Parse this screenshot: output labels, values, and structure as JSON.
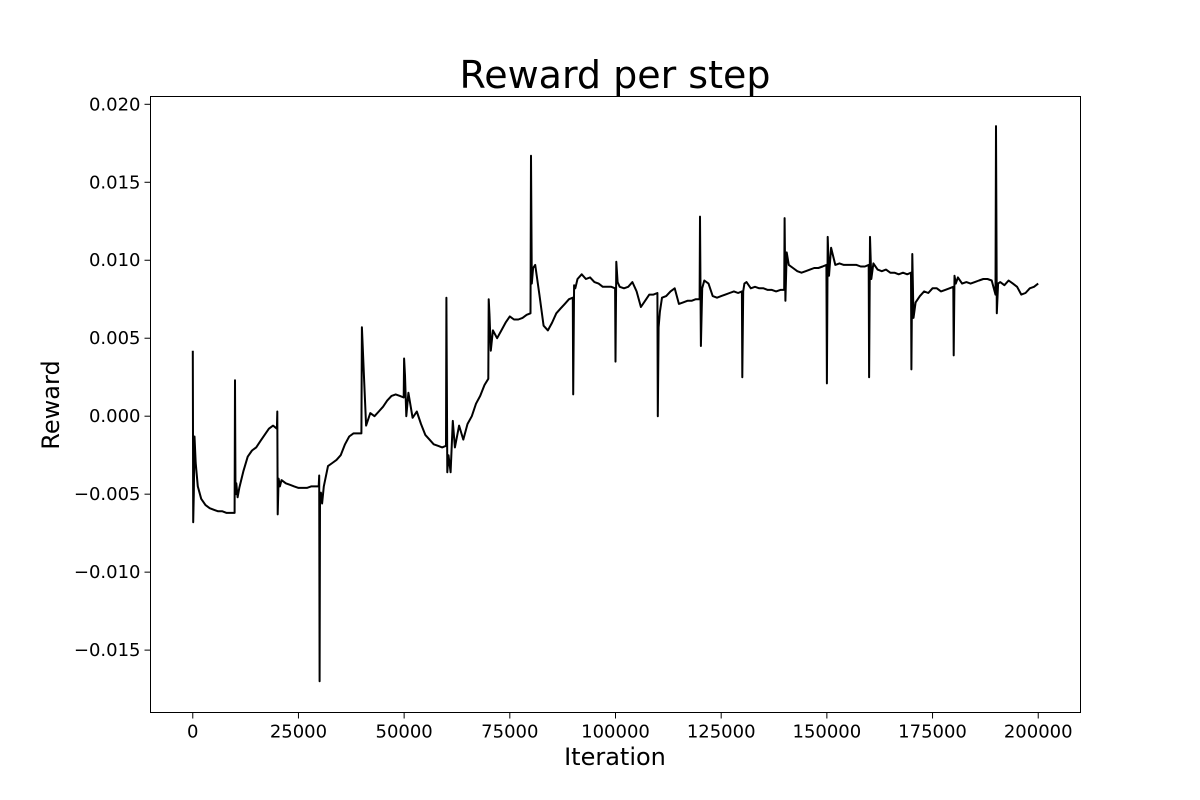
{
  "chart_data": {
    "type": "line",
    "title": "Reward per step",
    "xlabel": "Iteration",
    "ylabel": "Reward",
    "xlim": [
      -10000,
      210000
    ],
    "ylim": [
      -0.019,
      0.0205
    ],
    "grid": false,
    "legend": "none",
    "x_ticks": [
      0,
      25000,
      50000,
      75000,
      100000,
      125000,
      150000,
      175000,
      200000
    ],
    "x_tick_labels": [
      "0",
      "25000",
      "50000",
      "75000",
      "100000",
      "125000",
      "150000",
      "175000",
      "200000"
    ],
    "y_ticks": [
      -0.015,
      -0.01,
      -0.005,
      0.0,
      0.005,
      0.01,
      0.015,
      0.02
    ],
    "y_tick_labels": [
      "−0.015",
      "−0.010",
      "−0.005",
      "0.000",
      "0.005",
      "0.010",
      "0.015",
      "0.020"
    ],
    "line_color": "#000000",
    "series": [
      {
        "x": [
          0,
          100,
          250,
          400,
          700,
          1200,
          2000,
          3000,
          4000,
          5000,
          6000,
          7000,
          8000,
          9000,
          9900,
          10000,
          10100,
          10300,
          10600,
          11000,
          12000,
          13000,
          14000,
          15000,
          16000,
          17000,
          18000,
          19000,
          19900,
          20000,
          20100,
          20300,
          20600,
          21000,
          22000,
          23000,
          24000,
          25000,
          26000,
          27000,
          28000,
          29000,
          29800,
          29900,
          30000,
          30100,
          30300,
          30600,
          31000,
          32000,
          33000,
          34000,
          35000,
          36000,
          37000,
          38000,
          39000,
          39900,
          40000,
          40200,
          40500,
          41000,
          41500,
          42000,
          43000,
          44000,
          45000,
          46000,
          47000,
          48000,
          49000,
          49900,
          50000,
          50200,
          50500,
          51000,
          52000,
          53000,
          54000,
          55000,
          56000,
          57000,
          58000,
          59000,
          59900,
          60000,
          60200,
          60500,
          61000,
          61500,
          62000,
          63000,
          64000,
          65000,
          66000,
          67000,
          68000,
          69000,
          69900,
          70000,
          70200,
          70500,
          71000,
          72000,
          73000,
          74000,
          75000,
          76000,
          77000,
          78000,
          79000,
          79900,
          80000,
          80200,
          80500,
          81000,
          82000,
          83000,
          84000,
          85000,
          86000,
          87000,
          88000,
          89000,
          89900,
          90000,
          90200,
          90500,
          91000,
          92000,
          93000,
          94000,
          95000,
          96000,
          97000,
          98000,
          99000,
          99900,
          100000,
          100200,
          100500,
          101000,
          102000,
          103000,
          104000,
          105000,
          106000,
          107000,
          108000,
          109000,
          109900,
          110000,
          110200,
          110500,
          111000,
          112000,
          113000,
          114000,
          115000,
          116000,
          117000,
          118000,
          119000,
          119900,
          120000,
          120200,
          120500,
          121000,
          122000,
          123000,
          124000,
          125000,
          126000,
          127000,
          128000,
          129000,
          129900,
          130000,
          130200,
          130500,
          131000,
          132000,
          133000,
          134000,
          135000,
          136000,
          137000,
          138000,
          139000,
          139900,
          140000,
          140200,
          140500,
          141000,
          142000,
          143000,
          144000,
          145000,
          146000,
          147000,
          148000,
          149000,
          149900,
          150000,
          150200,
          150500,
          151000,
          152000,
          153000,
          154000,
          155000,
          156000,
          157000,
          158000,
          159000,
          159900,
          160000,
          160200,
          160500,
          161000,
          162000,
          163000,
          164000,
          165000,
          166000,
          167000,
          168000,
          169000,
          169900,
          170000,
          170200,
          170500,
          171000,
          172000,
          173000,
          174000,
          175000,
          176000,
          177000,
          178000,
          179000,
          179900,
          180000,
          180200,
          180500,
          181000,
          182000,
          183000,
          184000,
          185000,
          186000,
          187000,
          188000,
          189000,
          189900,
          190000,
          190200,
          190500,
          191000,
          192000,
          193000,
          194000,
          195000,
          196000,
          197000,
          198000,
          199000,
          200000
        ],
        "y": [
          0.0042,
          -0.0068,
          -0.005,
          -0.0013,
          -0.003,
          -0.0045,
          -0.0053,
          -0.0057,
          -0.0059,
          -0.006,
          -0.0061,
          -0.0061,
          -0.0062,
          -0.0062,
          -0.0062,
          0.0023,
          -0.005,
          -0.0043,
          -0.0052,
          -0.0046,
          -0.0035,
          -0.0026,
          -0.0022,
          -0.002,
          -0.0016,
          -0.0012,
          -0.0008,
          -0.0006,
          -0.0008,
          0.0003,
          -0.0063,
          -0.004,
          -0.0045,
          -0.0041,
          -0.0043,
          -0.0044,
          -0.0045,
          -0.0046,
          -0.0046,
          -0.0046,
          -0.0045,
          -0.0045,
          -0.0045,
          -0.0038,
          -0.017,
          -0.0055,
          -0.0049,
          -0.0056,
          -0.0045,
          -0.0032,
          -0.003,
          -0.0028,
          -0.0025,
          -0.0018,
          -0.0013,
          -0.0011,
          -0.0011,
          -0.0011,
          0.0057,
          0.0045,
          0.0025,
          -0.0006,
          -0.0002,
          0.0002,
          0.0,
          0.0003,
          0.0006,
          0.001,
          0.0013,
          0.0014,
          0.0013,
          0.0012,
          0.0037,
          0.0026,
          0.0,
          0.0015,
          -0.0001,
          0.0003,
          -0.0005,
          -0.0012,
          -0.0015,
          -0.0018,
          -0.0019,
          -0.002,
          -0.0019,
          0.0076,
          -0.0036,
          -0.0025,
          -0.0036,
          -0.0003,
          -0.002,
          -0.0006,
          -0.0015,
          -0.0005,
          0.0,
          0.0008,
          0.0013,
          0.002,
          0.0024,
          0.0075,
          0.0065,
          0.0042,
          0.0055,
          0.005,
          0.0055,
          0.006,
          0.0064,
          0.0062,
          0.0062,
          0.0063,
          0.0065,
          0.0066,
          0.0167,
          0.0085,
          0.0095,
          0.0097,
          0.0078,
          0.0058,
          0.0055,
          0.006,
          0.0066,
          0.0069,
          0.0072,
          0.0075,
          0.0076,
          0.0014,
          0.0084,
          0.0082,
          0.0088,
          0.0091,
          0.0088,
          0.0089,
          0.0086,
          0.0085,
          0.0083,
          0.0083,
          0.0083,
          0.0082,
          0.0035,
          0.0099,
          0.0086,
          0.0083,
          0.0082,
          0.0083,
          0.0086,
          0.008,
          0.007,
          0.0074,
          0.0078,
          0.0078,
          0.0079,
          0.0,
          0.0057,
          0.0067,
          0.0076,
          0.0077,
          0.008,
          0.0082,
          0.0072,
          0.0073,
          0.0074,
          0.0074,
          0.0075,
          0.0075,
          0.0128,
          0.0045,
          0.0082,
          0.0087,
          0.0085,
          0.0077,
          0.0076,
          0.0077,
          0.0078,
          0.0079,
          0.008,
          0.0079,
          0.008,
          0.0025,
          0.008,
          0.0085,
          0.0086,
          0.0082,
          0.0083,
          0.0082,
          0.0082,
          0.0081,
          0.0081,
          0.008,
          0.0081,
          0.0081,
          0.0127,
          0.0074,
          0.0105,
          0.0097,
          0.0095,
          0.0093,
          0.0092,
          0.0093,
          0.0094,
          0.0095,
          0.0095,
          0.0096,
          0.0097,
          0.0021,
          0.0115,
          0.009,
          0.0108,
          0.0097,
          0.0098,
          0.0097,
          0.0097,
          0.0097,
          0.0097,
          0.0096,
          0.0096,
          0.0097,
          0.0025,
          0.0115,
          0.0088,
          0.0098,
          0.0094,
          0.0093,
          0.0094,
          0.0092,
          0.0092,
          0.0091,
          0.0092,
          0.0091,
          0.0092,
          0.003,
          0.0104,
          0.0063,
          0.0073,
          0.0077,
          0.008,
          0.0079,
          0.0082,
          0.0082,
          0.008,
          0.0081,
          0.0082,
          0.0083,
          0.0039,
          0.009,
          0.0085,
          0.0089,
          0.0085,
          0.0086,
          0.0085,
          0.0086,
          0.0087,
          0.0088,
          0.0088,
          0.0087,
          0.0078,
          0.0186,
          0.0066,
          0.0085,
          0.0086,
          0.0084,
          0.0087,
          0.0085,
          0.0083,
          0.0078,
          0.0079,
          0.0082,
          0.0083,
          0.0085
        ]
      }
    ]
  }
}
